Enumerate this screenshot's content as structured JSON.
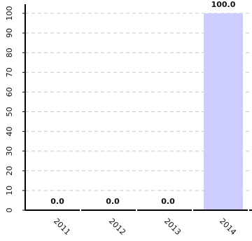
{
  "chart_data": {
    "type": "bar",
    "title": "",
    "xlabel": "",
    "ylabel": "",
    "categories": [
      "2011",
      "2012",
      "2013",
      "2014"
    ],
    "values": [
      0.0,
      0.0,
      0.0,
      100.0
    ],
    "data_labels": [
      "0.0",
      "0.0",
      "0.0",
      "100.0"
    ],
    "ylim": [
      0,
      100
    ],
    "yticks": [
      "0",
      "10",
      "20",
      "30",
      "40",
      "50",
      "60",
      "70",
      "80",
      "90",
      "100"
    ],
    "grid": true,
    "bar_color": "#ccccff",
    "grid_color": "#c8c8c8",
    "axis_color": "#000000"
  }
}
